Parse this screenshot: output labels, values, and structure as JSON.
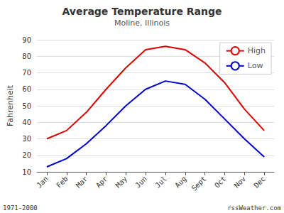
{
  "chart_data": {
    "type": "line",
    "title": "Average Temperature Range",
    "subtitle": "Moline, Illinois",
    "ylabel": "Fahrenheit",
    "categories": [
      "Jan",
      "Feb",
      "Mar",
      "Apr",
      "May",
      "Jun",
      "Jul",
      "Aug",
      "Sept",
      "Oct",
      "Nov",
      "Dec"
    ],
    "series": [
      {
        "name": "High",
        "color": "#dd0000",
        "values": [
          30,
          35,
          46,
          60,
          73,
          84,
          86,
          84,
          76,
          64,
          48,
          35
        ]
      },
      {
        "name": "Low",
        "color": "#0000cc",
        "values": [
          13,
          18,
          27,
          38,
          50,
          60,
          65,
          63,
          54,
          42,
          30,
          19
        ]
      }
    ],
    "ylim": [
      10,
      90
    ],
    "yticks": [
      10,
      20,
      30,
      40,
      50,
      60,
      70,
      80,
      90
    ],
    "grid": true,
    "legend": "upper right",
    "annotations": [
      "1971-2000",
      "rssWeather.com"
    ]
  }
}
